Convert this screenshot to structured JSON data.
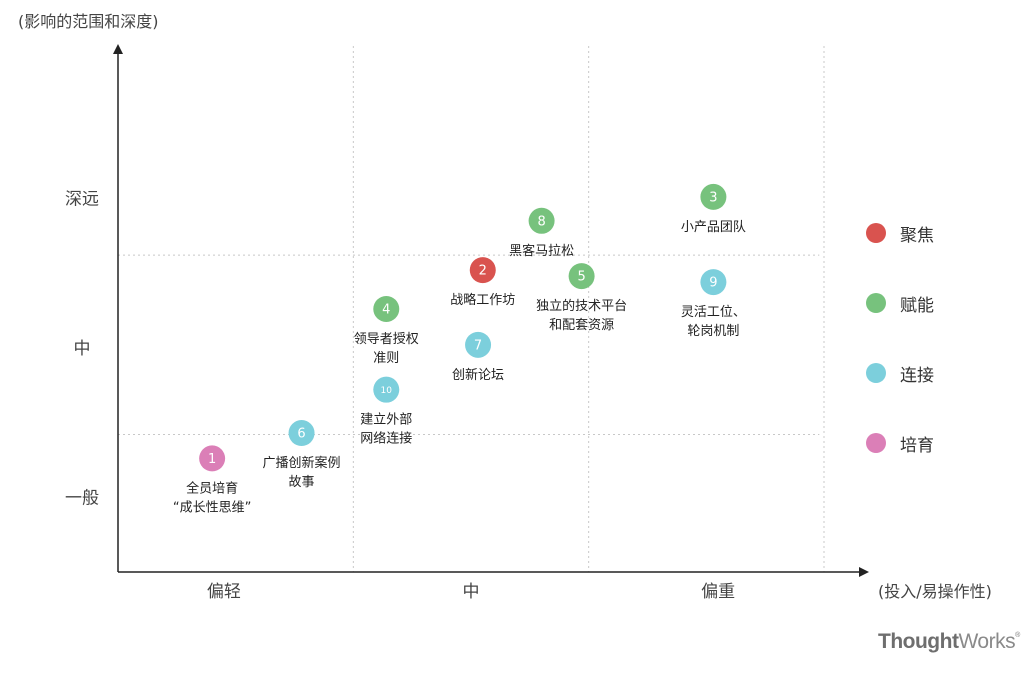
{
  "chart_data": {
    "type": "scatter",
    "ylabel": "(影响的范围和深度)",
    "xlabel": "(投入/易操作性)",
    "y_ticks": [
      "一般",
      "中",
      "深远"
    ],
    "x_ticks": [
      "偏轻",
      "中",
      "偏重"
    ],
    "xlim": [
      0,
      3
    ],
    "ylim": [
      0,
      3
    ],
    "grid": true,
    "legend_position": "right",
    "categories": [
      {
        "key": "focus",
        "label": "聚焦",
        "color": "#d9534f"
      },
      {
        "key": "empower",
        "label": "赋能",
        "color": "#77c27d"
      },
      {
        "key": "connect",
        "label": "连接",
        "color": "#7ccfdc"
      },
      {
        "key": "nurture",
        "label": "培育",
        "color": "#db7fb7"
      }
    ],
    "points": [
      {
        "id": "1",
        "x": 0.4,
        "y": 0.76,
        "category": "nurture",
        "label": [
          "全员培育",
          "“成长性思维”"
        ]
      },
      {
        "id": "2",
        "x": 1.55,
        "y": 2.02,
        "category": "focus",
        "label": [
          "战略工作坊"
        ]
      },
      {
        "id": "3",
        "x": 2.53,
        "y": 2.51,
        "category": "empower",
        "label": [
          "小产品团队"
        ]
      },
      {
        "id": "4",
        "x": 1.14,
        "y": 1.76,
        "category": "empower",
        "label": [
          "领导者授权",
          "准则"
        ]
      },
      {
        "id": "5",
        "x": 1.97,
        "y": 1.98,
        "category": "empower",
        "label": [
          "独立的技术平台",
          "和配套资源"
        ]
      },
      {
        "id": "6",
        "x": 0.78,
        "y": 0.93,
        "category": "connect",
        "label": [
          "广播创新案例",
          "故事"
        ]
      },
      {
        "id": "7",
        "x": 1.53,
        "y": 1.52,
        "category": "connect",
        "label": [
          "创新论坛"
        ]
      },
      {
        "id": "8",
        "x": 1.8,
        "y": 2.35,
        "category": "empower",
        "label": [
          "黑客马拉松"
        ]
      },
      {
        "id": "9",
        "x": 2.53,
        "y": 1.94,
        "category": "connect",
        "label": [
          "灵活工位、",
          "轮岗机制"
        ]
      },
      {
        "id": "10",
        "x": 1.14,
        "y": 1.22,
        "category": "connect",
        "label": [
          "建立外部",
          "网络连接"
        ]
      }
    ]
  },
  "brand": {
    "part1": "Thought",
    "part2": "Works",
    "mark": "®"
  }
}
